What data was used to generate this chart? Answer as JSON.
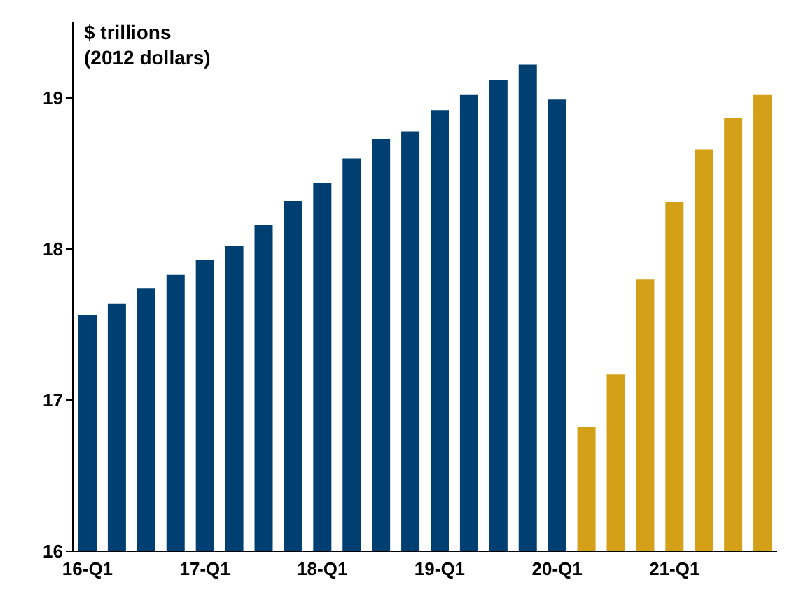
{
  "chart_data": {
    "type": "bar",
    "ylabel": "$ trillions\n(2012 dollars)",
    "categories": [
      "16-Q1",
      null,
      null,
      null,
      "17-Q1",
      null,
      null,
      null,
      "18-Q1",
      null,
      null,
      null,
      "19-Q1",
      null,
      null,
      null,
      "20-Q1",
      null,
      null,
      null,
      "21-Q1",
      null,
      null,
      null
    ],
    "values": [
      17.56,
      17.64,
      17.74,
      17.83,
      17.93,
      18.02,
      18.16,
      18.32,
      18.44,
      18.6,
      18.73,
      18.78,
      18.92,
      19.02,
      19.12,
      19.22,
      18.99,
      16.82,
      17.17,
      17.8,
      18.31,
      18.66,
      18.87,
      19.02
    ],
    "colors": [
      "#003f72",
      "#003f72",
      "#003f72",
      "#003f72",
      "#003f72",
      "#003f72",
      "#003f72",
      "#003f72",
      "#003f72",
      "#003f72",
      "#003f72",
      "#003f72",
      "#003f72",
      "#003f72",
      "#003f72",
      "#003f72",
      "#003f72",
      "#d4a017",
      "#d4a017",
      "#d4a017",
      "#d4a017",
      "#d4a017",
      "#d4a017",
      "#d4a017"
    ],
    "ylim": [
      16,
      19.5
    ],
    "yticks": [
      16,
      17,
      18,
      19
    ],
    "grid": false
  }
}
